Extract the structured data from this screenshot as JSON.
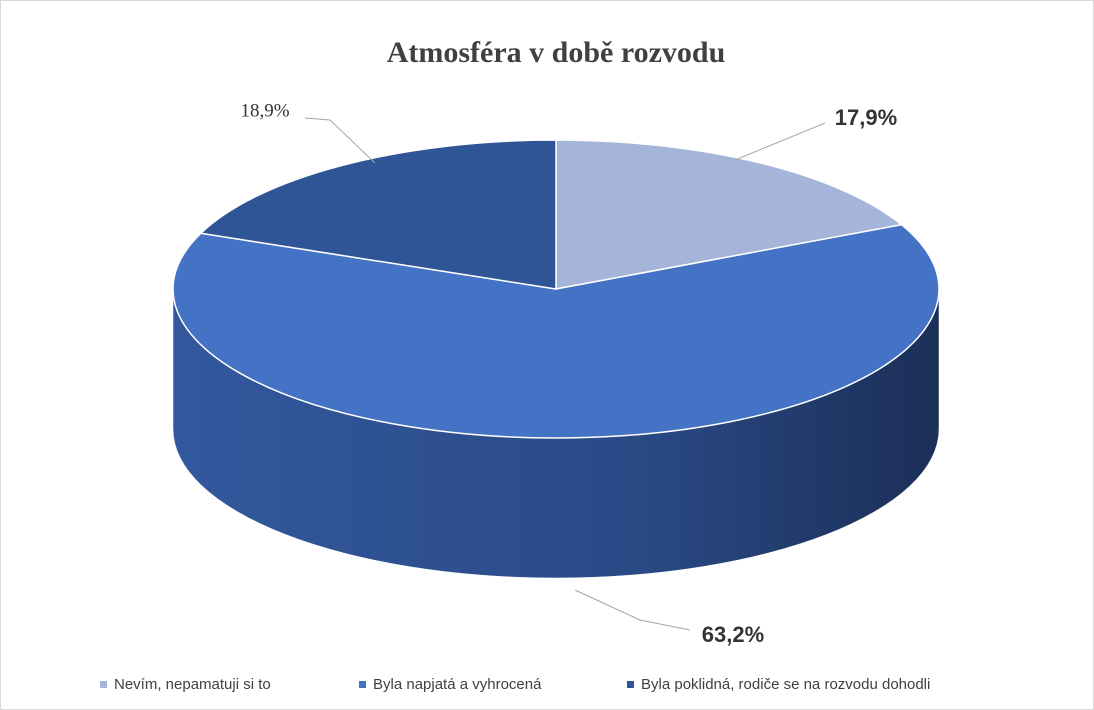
{
  "chart_data": {
    "type": "pie",
    "title": "Atmosféra v době rozvodu",
    "categories": [
      "Nevím, nepamatuji si to",
      "Byla napjatá a vyhrocená",
      "Byla poklidná, rodiče se na rozvodu dohodli"
    ],
    "values": [
      17.9,
      63.2,
      18.9
    ],
    "value_labels": [
      "17,9%",
      "63,2%",
      "18,9%"
    ],
    "colors": [
      "#a5b4d9",
      "#4472c4",
      "#2f5597"
    ],
    "legend": "bottom"
  }
}
